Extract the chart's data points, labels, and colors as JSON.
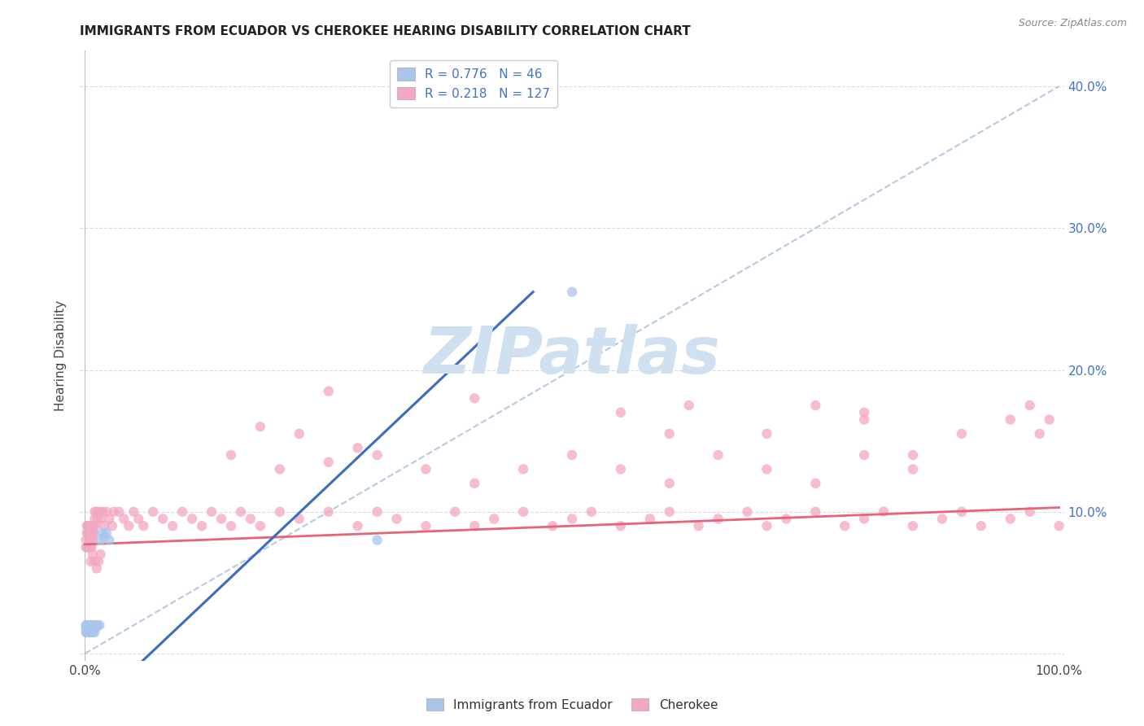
{
  "title": "IMMIGRANTS FROM ECUADOR VS CHEROKEE HEARING DISABILITY CORRELATION CHART",
  "source": "Source: ZipAtlas.com",
  "ylabel_label": "Hearing Disability",
  "legend_entry1": {
    "R": "0.776",
    "N": "46"
  },
  "legend_entry2": {
    "R": "0.218",
    "N": "127"
  },
  "blue_scatter_color": "#aac4ea",
  "pink_scatter_color": "#f4a7c0",
  "blue_line_color": "#3a6dbf",
  "pink_line_color": "#e8637a",
  "dashed_line_color": "#b0c4de",
  "watermark": "ZIPatlas",
  "watermark_color": "#cfe0f0",
  "background_color": "#ffffff",
  "grid_color": "#d8d8d8",
  "title_color": "#222222",
  "source_color": "#888888",
  "legend_label1": "Immigrants from Ecuador",
  "legend_label2": "Cherokee",
  "right_ytick_color": "#4472c4",
  "blue_scatter_x": [
    0.001,
    0.001,
    0.001,
    0.002,
    0.002,
    0.002,
    0.002,
    0.002,
    0.003,
    0.003,
    0.003,
    0.003,
    0.003,
    0.004,
    0.004,
    0.004,
    0.004,
    0.005,
    0.005,
    0.005,
    0.005,
    0.006,
    0.006,
    0.006,
    0.006,
    0.007,
    0.007,
    0.007,
    0.008,
    0.008,
    0.008,
    0.009,
    0.009,
    0.01,
    0.01,
    0.011,
    0.012,
    0.013,
    0.015,
    0.016,
    0.018,
    0.02,
    0.022,
    0.025,
    0.3,
    0.5
  ],
  "blue_scatter_y": [
    0.015,
    0.02,
    0.018,
    0.015,
    0.02,
    0.018,
    0.015,
    0.02,
    0.015,
    0.02,
    0.018,
    0.015,
    0.02,
    0.015,
    0.02,
    0.018,
    0.015,
    0.02,
    0.015,
    0.018,
    0.02,
    0.015,
    0.02,
    0.018,
    0.015,
    0.02,
    0.018,
    0.015,
    0.02,
    0.018,
    0.015,
    0.02,
    0.018,
    0.015,
    0.02,
    0.018,
    0.02,
    0.02,
    0.02,
    0.08,
    0.085,
    0.082,
    0.085,
    0.08,
    0.08,
    0.255
  ],
  "pink_scatter_x": [
    0.001,
    0.001,
    0.002,
    0.002,
    0.002,
    0.003,
    0.003,
    0.003,
    0.004,
    0.004,
    0.004,
    0.005,
    0.005,
    0.005,
    0.006,
    0.006,
    0.007,
    0.007,
    0.007,
    0.008,
    0.008,
    0.009,
    0.009,
    0.01,
    0.01,
    0.011,
    0.012,
    0.013,
    0.015,
    0.016,
    0.018,
    0.02,
    0.022,
    0.025,
    0.028,
    0.03,
    0.035,
    0.04,
    0.045,
    0.05,
    0.055,
    0.06,
    0.07,
    0.08,
    0.09,
    0.1,
    0.11,
    0.12,
    0.13,
    0.14,
    0.15,
    0.16,
    0.17,
    0.18,
    0.2,
    0.22,
    0.25,
    0.28,
    0.3,
    0.32,
    0.35,
    0.38,
    0.4,
    0.42,
    0.45,
    0.48,
    0.5,
    0.52,
    0.55,
    0.58,
    0.6,
    0.63,
    0.65,
    0.68,
    0.7,
    0.72,
    0.75,
    0.78,
    0.8,
    0.82,
    0.85,
    0.88,
    0.9,
    0.92,
    0.95,
    0.97,
    1.0,
    0.15,
    0.2,
    0.25,
    0.3,
    0.35,
    0.4,
    0.45,
    0.5,
    0.55,
    0.6,
    0.65,
    0.7,
    0.75,
    0.8,
    0.85,
    0.18,
    0.22,
    0.28,
    0.55,
    0.62,
    0.7,
    0.75,
    0.8,
    0.85,
    0.9,
    0.95,
    0.97,
    0.98,
    0.99,
    0.005,
    0.006,
    0.008,
    0.01,
    0.012,
    0.014,
    0.016,
    0.25,
    0.4,
    0.6,
    0.8
  ],
  "pink_scatter_y": [
    0.08,
    0.075,
    0.085,
    0.075,
    0.09,
    0.085,
    0.075,
    0.09,
    0.085,
    0.075,
    0.09,
    0.08,
    0.09,
    0.075,
    0.09,
    0.08,
    0.085,
    0.075,
    0.09,
    0.085,
    0.08,
    0.09,
    0.085,
    0.095,
    0.1,
    0.09,
    0.1,
    0.095,
    0.1,
    0.095,
    0.1,
    0.09,
    0.1,
    0.095,
    0.09,
    0.1,
    0.1,
    0.095,
    0.09,
    0.1,
    0.095,
    0.09,
    0.1,
    0.095,
    0.09,
    0.1,
    0.095,
    0.09,
    0.1,
    0.095,
    0.09,
    0.1,
    0.095,
    0.09,
    0.1,
    0.095,
    0.1,
    0.09,
    0.1,
    0.095,
    0.09,
    0.1,
    0.09,
    0.095,
    0.1,
    0.09,
    0.095,
    0.1,
    0.09,
    0.095,
    0.1,
    0.09,
    0.095,
    0.1,
    0.09,
    0.095,
    0.1,
    0.09,
    0.095,
    0.1,
    0.09,
    0.095,
    0.1,
    0.09,
    0.095,
    0.1,
    0.09,
    0.14,
    0.13,
    0.135,
    0.14,
    0.13,
    0.12,
    0.13,
    0.14,
    0.13,
    0.12,
    0.14,
    0.13,
    0.12,
    0.14,
    0.13,
    0.16,
    0.155,
    0.145,
    0.17,
    0.175,
    0.155,
    0.175,
    0.165,
    0.14,
    0.155,
    0.165,
    0.175,
    0.155,
    0.165,
    0.075,
    0.065,
    0.07,
    0.065,
    0.06,
    0.065,
    0.07,
    0.185,
    0.18,
    0.155,
    0.17
  ],
  "blue_line_x": [
    -0.01,
    0.46
  ],
  "blue_line_y": [
    -0.05,
    0.255
  ],
  "pink_line_x": [
    0.0,
    1.0
  ],
  "pink_line_y": [
    0.077,
    0.103
  ],
  "dashed_line_x": [
    0.0,
    1.0
  ],
  "dashed_line_y": [
    0.0,
    0.4
  ],
  "xlim": [
    -0.005,
    1.005
  ],
  "ylim": [
    -0.005,
    0.425
  ],
  "figsize": [
    14.06,
    8.92
  ],
  "dpi": 100
}
